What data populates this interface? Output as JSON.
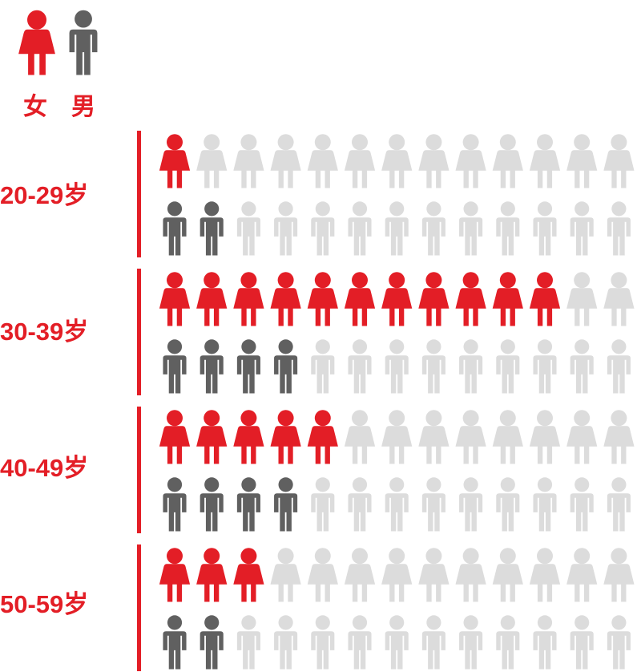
{
  "colors": {
    "female": "#e31e26",
    "male": "#606060",
    "empty": "#dcdcdc",
    "accent": "#e31e26"
  },
  "legend": [
    {
      "icon": "female-person-icon",
      "label": "女"
    },
    {
      "icon": "male-person-icon",
      "label": "男"
    }
  ],
  "chart_data": {
    "type": "pictogram",
    "icons_per_row": 13,
    "categories": [
      "20-29岁",
      "30-39岁",
      "40-49岁",
      "50-59岁"
    ],
    "series": [
      {
        "name": "女",
        "values": [
          1,
          11,
          5,
          3
        ]
      },
      {
        "name": "男",
        "values": [
          2,
          4,
          4,
          2
        ]
      }
    ]
  }
}
